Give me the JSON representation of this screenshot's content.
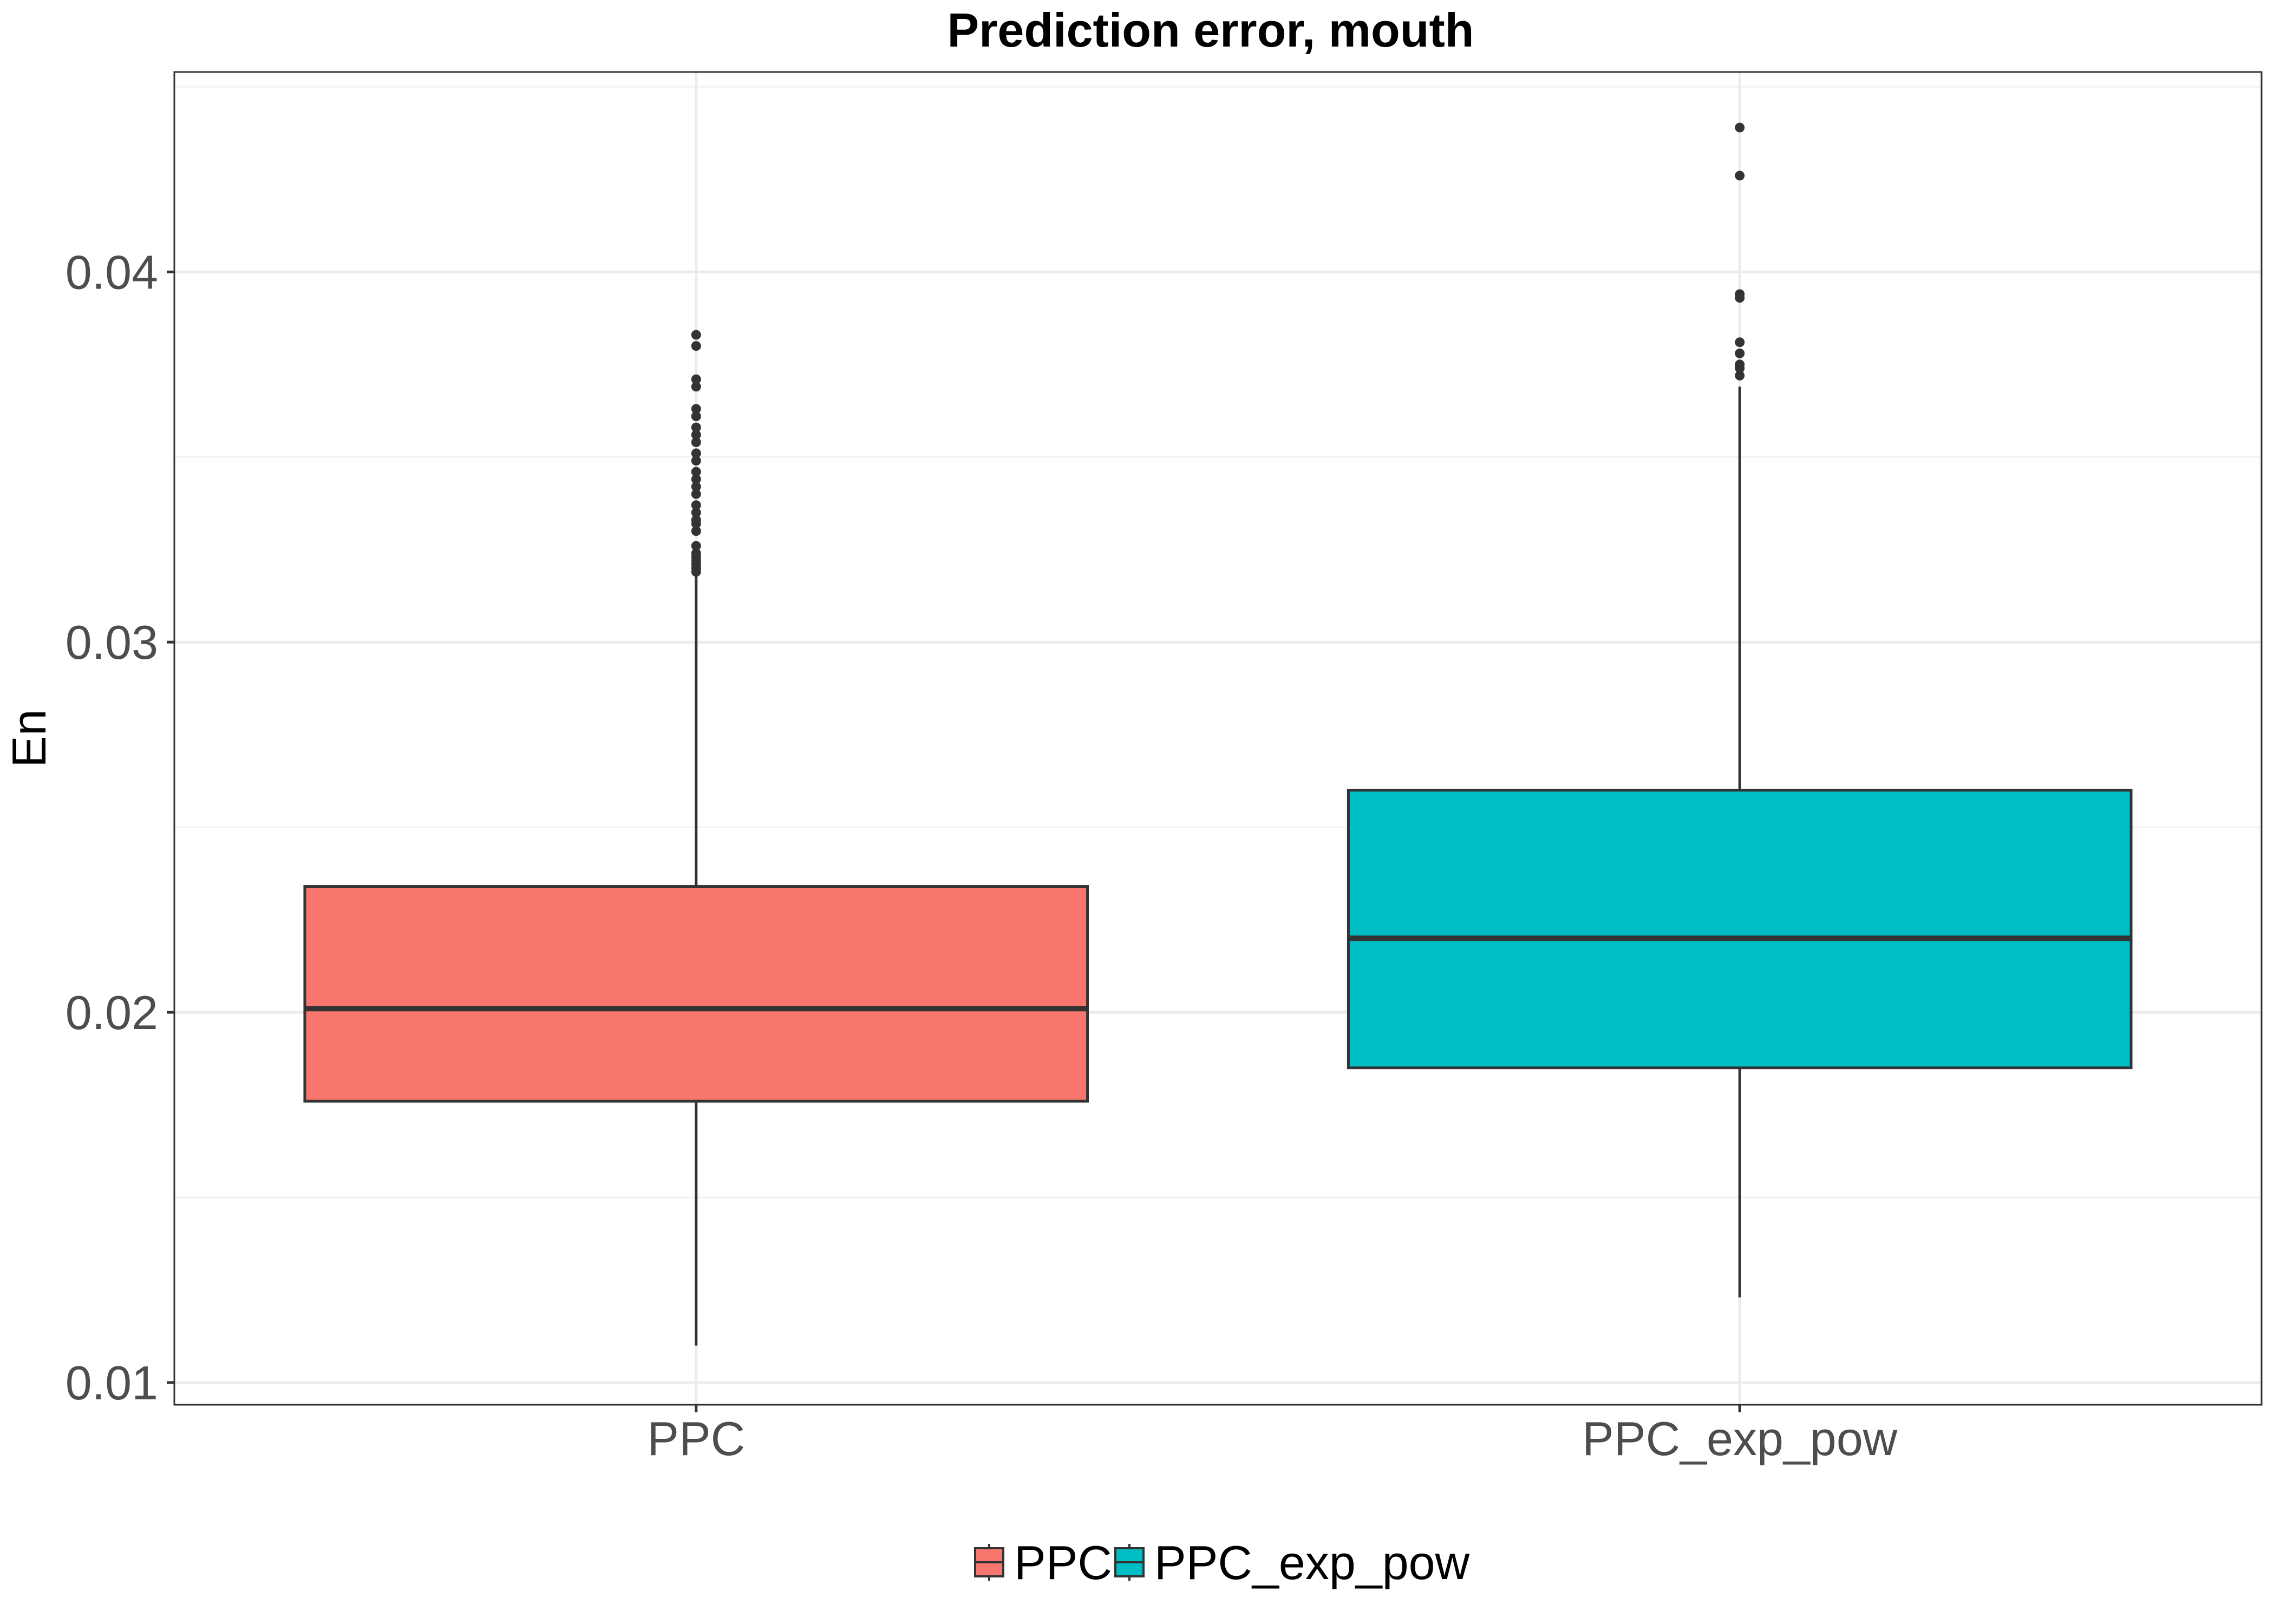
{
  "chart_data": {
    "type": "box",
    "title": "Prediction error, mouth",
    "xlabel": "",
    "ylabel": "En",
    "ylim": [
      0.0094,
      0.0454
    ],
    "yticks": [
      0.01,
      0.02,
      0.03,
      0.04
    ],
    "ytick_labels": [
      "0.01",
      "0.02",
      "0.03",
      "0.04"
    ],
    "grid": true,
    "legend_position": "bottom",
    "categories": [
      "PPC",
      "PPC_exp_pow"
    ],
    "series": [
      {
        "name": "PPC",
        "color": "#F8766D",
        "whisker_low": 0.011,
        "q1": 0.0176,
        "median": 0.0201,
        "q3": 0.0234,
        "whisker_high": 0.0318,
        "outliers": [
          0.0319,
          0.032,
          0.0321,
          0.0322,
          0.0323,
          0.0324,
          0.0326,
          0.033,
          0.0332,
          0.0333,
          0.0335,
          0.0337,
          0.034,
          0.0342,
          0.0344,
          0.0346,
          0.0349,
          0.0351,
          0.0354,
          0.0356,
          0.0358,
          0.0361,
          0.0363,
          0.0369,
          0.0371,
          0.038,
          0.0383
        ]
      },
      {
        "name": "PPC_exp_pow",
        "color": "#00BFC4",
        "whisker_low": 0.0123,
        "q1": 0.0185,
        "median": 0.022,
        "q3": 0.026,
        "whisker_high": 0.0369,
        "outliers": [
          0.0372,
          0.0374,
          0.0375,
          0.0378,
          0.0381,
          0.0393,
          0.0394,
          0.0426,
          0.0439
        ]
      }
    ]
  }
}
